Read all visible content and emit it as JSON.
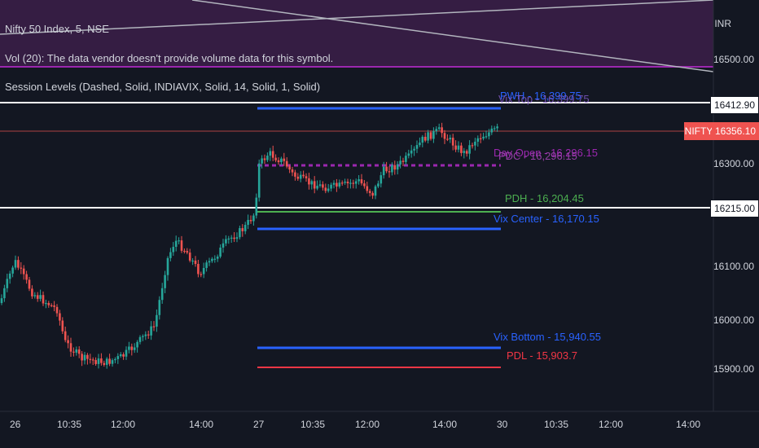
{
  "header": {
    "symbol_line": "Nifty 50 Index, 5, NSE",
    "vol_line": "Vol (20): The data vendor doesn't provide volume data for this symbol.",
    "session_line": "Session Levels (Dashed, Solid, INDIAVIX, Solid, 14, Solid, 1, Solid)"
  },
  "price_axis": {
    "currency": "INR",
    "ticks": [
      "16500.00",
      "16300.00",
      "16100.00",
      "16000.00",
      "15900.00"
    ]
  },
  "price_boxes": {
    "upper": "16412.90",
    "last_price": "16356.10",
    "lower": "16215.00"
  },
  "symbol_tag": "NIFTY",
  "levels": {
    "pwh": "PWH - 16,399.75",
    "vix_top": "Vix Top - 16,399.75",
    "day_open": "Day Open - 16,296.15",
    "pdc": "PDC - 16,296.15",
    "pdh": "PDH - 16,204.45",
    "vix_center": "Vix Center - 16,170.15",
    "vix_bottom": "Vix Bottom - 15,940.55",
    "pdl": "PDL - 15,903.7"
  },
  "time_axis": {
    "labels": [
      "26",
      "10:35",
      "12:00",
      "14:00",
      "27",
      "10:35",
      "12:00",
      "14:00",
      "30",
      "10:35",
      "12:00",
      "14:00"
    ]
  },
  "colors": {
    "background": "#131722",
    "up": "#26a69a",
    "down": "#ef5350",
    "blue_level": "#2962ff",
    "pdh_green": "#4caf50",
    "pdl_red": "#f23645",
    "purple": "#9c27b0",
    "band": "#3a2146"
  }
}
